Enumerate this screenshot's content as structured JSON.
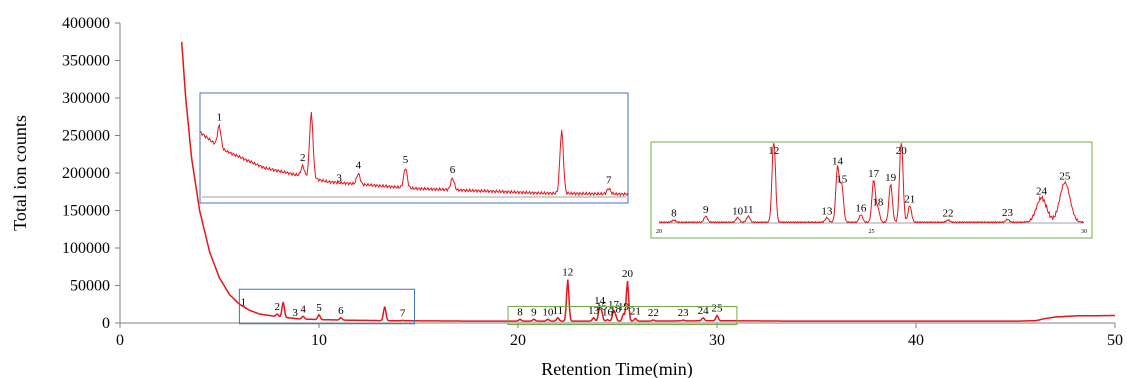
{
  "chart_data": {
    "type": "line",
    "xlabel": "Retention Time(min)",
    "ylabel": "Total ion counts",
    "xlim": [
      0,
      50
    ],
    "ylim": [
      0,
      400000
    ],
    "x_ticks": [
      "0",
      "10",
      "20",
      "30",
      "40",
      "50"
    ],
    "y_ticks": [
      "0",
      "50000",
      "100000",
      "150000",
      "200000",
      "250000",
      "300000",
      "350000",
      "400000"
    ],
    "grid": false,
    "legend": "none",
    "line_color": "#e8141b",
    "baseline": [
      [
        3.1,
        375000
      ],
      [
        3.3,
        300000
      ],
      [
        3.6,
        220000
      ],
      [
        4.0,
        150000
      ],
      [
        4.5,
        95000
      ],
      [
        5.0,
        60000
      ],
      [
        5.5,
        38000
      ],
      [
        6.0,
        25000
      ],
      [
        6.5,
        17000
      ],
      [
        7.0,
        12000
      ],
      [
        8.0,
        8000
      ],
      [
        9.0,
        5500
      ],
      [
        10.0,
        4500
      ],
      [
        12.0,
        3500
      ],
      [
        14.0,
        3000
      ],
      [
        18.0,
        2500
      ],
      [
        22.0,
        2500
      ],
      [
        26.0,
        2500
      ],
      [
        30.0,
        3000
      ],
      [
        34.0,
        2500
      ],
      [
        40.0,
        2500
      ],
      [
        45.0,
        2500
      ],
      [
        46.0,
        3000
      ],
      [
        46.5,
        6000
      ],
      [
        47.0,
        8000
      ],
      [
        48.0,
        9500
      ],
      [
        50.0,
        10000
      ]
    ],
    "peaks": [
      {
        "label": "1",
        "x": 6.2,
        "y": 18000
      },
      {
        "label": "2",
        "x": 7.9,
        "y": 12000
      },
      {
        "label": "",
        "x": 8.2,
        "y": 28000
      },
      {
        "label": "3",
        "x": 8.8,
        "y": 4000
      },
      {
        "label": "4",
        "x": 9.2,
        "y": 9000
      },
      {
        "label": "5",
        "x": 10.0,
        "y": 11000
      },
      {
        "label": "6",
        "x": 11.1,
        "y": 7000
      },
      {
        "label": "",
        "x": 13.3,
        "y": 22000
      },
      {
        "label": "7",
        "x": 14.2,
        "y": 3500
      },
      {
        "label": "8",
        "x": 20.1,
        "y": 5000
      },
      {
        "label": "9",
        "x": 20.8,
        "y": 5000
      },
      {
        "label": "10",
        "x": 21.5,
        "y": 5000
      },
      {
        "label": "11",
        "x": 22.0,
        "y": 7000
      },
      {
        "label": "12",
        "x": 22.5,
        "y": 58000
      },
      {
        "label": "13",
        "x": 23.8,
        "y": 7000
      },
      {
        "label": "14",
        "x": 24.1,
        "y": 20000
      },
      {
        "label": "15",
        "x": 24.2,
        "y": 13000
      },
      {
        "label": "16",
        "x": 24.5,
        "y": 4500
      },
      {
        "label": "17",
        "x": 24.8,
        "y": 15000
      },
      {
        "label": "18",
        "x": 24.9,
        "y": 9000
      },
      {
        "label": "19",
        "x": 25.3,
        "y": 12000
      },
      {
        "label": "20",
        "x": 25.5,
        "y": 56000
      },
      {
        "label": "21",
        "x": 25.9,
        "y": 6000
      },
      {
        "label": "22",
        "x": 26.8,
        "y": 4000
      },
      {
        "label": "23",
        "x": 28.3,
        "y": 4000
      },
      {
        "label": "24",
        "x": 29.3,
        "y": 7000
      },
      {
        "label": "25",
        "x": 30.0,
        "y": 10000
      }
    ],
    "highlight_boxes": [
      {
        "color": "#4472c4",
        "x_range": [
          6.0,
          14.8
        ],
        "y_range": [
          -1000,
          45000
        ]
      },
      {
        "color": "#70ad47",
        "x_range": [
          19.5,
          31.0
        ],
        "y_range": [
          -2000,
          22000
        ]
      }
    ],
    "insets": [
      {
        "color": "#4472c4",
        "peaks": [
          {
            "label": "1",
            "x": 0.045,
            "y": 0.75
          },
          {
            "label": "2",
            "x": 0.24,
            "y": 0.32
          },
          {
            "label": "",
            "x": 0.26,
            "y": 0.88
          },
          {
            "label": "3",
            "x": 0.325,
            "y": 0.1
          },
          {
            "label": "4",
            "x": 0.37,
            "y": 0.24
          },
          {
            "label": "5",
            "x": 0.48,
            "y": 0.3
          },
          {
            "label": "6",
            "x": 0.59,
            "y": 0.19
          },
          {
            "label": "",
            "x": 0.845,
            "y": 0.7
          },
          {
            "label": "7",
            "x": 0.955,
            "y": 0.08
          }
        ],
        "baseline_decay": [
          [
            0.0,
            0.68
          ],
          [
            0.05,
            0.5
          ],
          [
            0.15,
            0.3
          ],
          [
            0.3,
            0.15
          ],
          [
            0.5,
            0.08
          ],
          [
            0.8,
            0.03
          ],
          [
            1.0,
            0.02
          ]
        ]
      },
      {
        "color": "#70ad47",
        "x_ticks": [
          "20",
          "25",
          "30"
        ],
        "peaks": [
          {
            "label": "8",
            "x": 0.035,
            "y": 0.03
          },
          {
            "label": "9",
            "x": 0.11,
            "y": 0.08
          },
          {
            "label": "10",
            "x": 0.185,
            "y": 0.06
          },
          {
            "label": "11",
            "x": 0.21,
            "y": 0.08
          },
          {
            "label": "12",
            "x": 0.27,
            "y": 1.1
          },
          {
            "label": "13",
            "x": 0.395,
            "y": 0.06
          },
          {
            "label": "14",
            "x": 0.42,
            "y": 0.72
          },
          {
            "label": "15",
            "x": 0.43,
            "y": 0.48
          },
          {
            "label": "16",
            "x": 0.475,
            "y": 0.1
          },
          {
            "label": "17",
            "x": 0.505,
            "y": 0.55
          },
          {
            "label": "18",
            "x": 0.515,
            "y": 0.18
          },
          {
            "label": "19",
            "x": 0.545,
            "y": 0.5
          },
          {
            "label": "20",
            "x": 0.57,
            "y": 1.1
          },
          {
            "label": "21",
            "x": 0.59,
            "y": 0.22
          },
          {
            "label": "22",
            "x": 0.68,
            "y": 0.03
          },
          {
            "label": "23",
            "x": 0.82,
            "y": 0.04
          },
          {
            "label": "24",
            "x": 0.9,
            "y": 0.32
          },
          {
            "label": "25",
            "x": 0.955,
            "y": 0.52
          }
        ]
      }
    ]
  }
}
